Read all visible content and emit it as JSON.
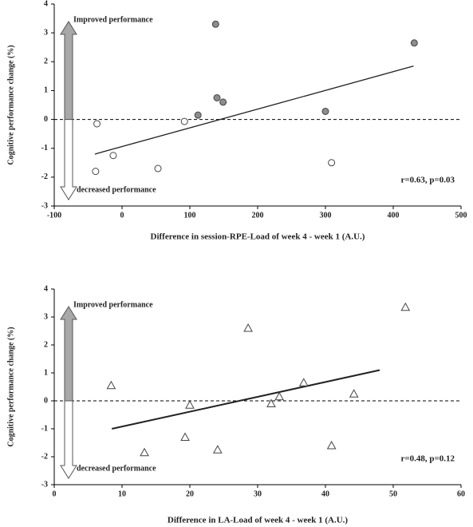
{
  "chart_data": [
    {
      "type": "scatter",
      "x_label": "Difference in session-RPE-Load of week 4 - week 1 (A.U.)",
      "y_label": "Cognitive performance change (%)",
      "xlim": [
        -100,
        500
      ],
      "xticks": [
        -100,
        0,
        100,
        200,
        300,
        400,
        500
      ],
      "ylim": [
        -3,
        4
      ],
      "yticks": [
        -3,
        -2,
        -1,
        0,
        1,
        2,
        3,
        4
      ],
      "marker": "circle",
      "series": [
        {
          "color": "#8c8c8c",
          "x": [
            112,
            149,
            138,
            140,
            300,
            431
          ],
          "values": [
            0.15,
            0.6,
            3.3,
            0.75,
            0.28,
            2.65
          ]
        },
        {
          "color": "#ffffff",
          "x": [
            -37,
            -39,
            -13,
            53,
            92,
            309
          ],
          "values": [
            -0.15,
            -1.8,
            -1.25,
            -1.7,
            -0.07,
            -1.5
          ]
        }
      ],
      "trendline": {
        "x": [
          -40,
          430
        ],
        "y": [
          -1.2,
          1.85
        ]
      },
      "reference_y": 0,
      "annotations": {
        "improved": "Improved performance",
        "decreased": "decreased performance",
        "stats": "r=0.63, p=0.03"
      }
    },
    {
      "type": "scatter",
      "x_label": "Difference in LA-Load of week 4 - week 1 (A.U.)",
      "y_label": "Cognitive performance change (%)",
      "xlim": [
        0,
        60
      ],
      "xticks": [
        0,
        10,
        20,
        30,
        40,
        50,
        60
      ],
      "ylim": [
        -3,
        4
      ],
      "yticks": [
        -3,
        -2,
        -1,
        0,
        1,
        2,
        3,
        4
      ],
      "marker": "triangle",
      "series": [
        {
          "color": "#ffffff",
          "x": [
            8.4,
            13.3,
            19.3,
            20,
            24.1,
            28.6,
            32,
            33.2,
            36.8,
            40.9,
            44.2,
            51.8
          ],
          "values": [
            0.55,
            -1.85,
            -1.3,
            -0.15,
            -1.75,
            2.6,
            -0.1,
            0.15,
            0.65,
            -1.6,
            0.25,
            3.35
          ]
        }
      ],
      "trendline": {
        "x": [
          8.5,
          48
        ],
        "y": [
          -1,
          1.1
        ]
      },
      "reference_y": 0,
      "annotations": {
        "improved": "Improved performance",
        "decreased": "decreased performance",
        "stats": "r=0.48, p=0.12"
      }
    }
  ]
}
